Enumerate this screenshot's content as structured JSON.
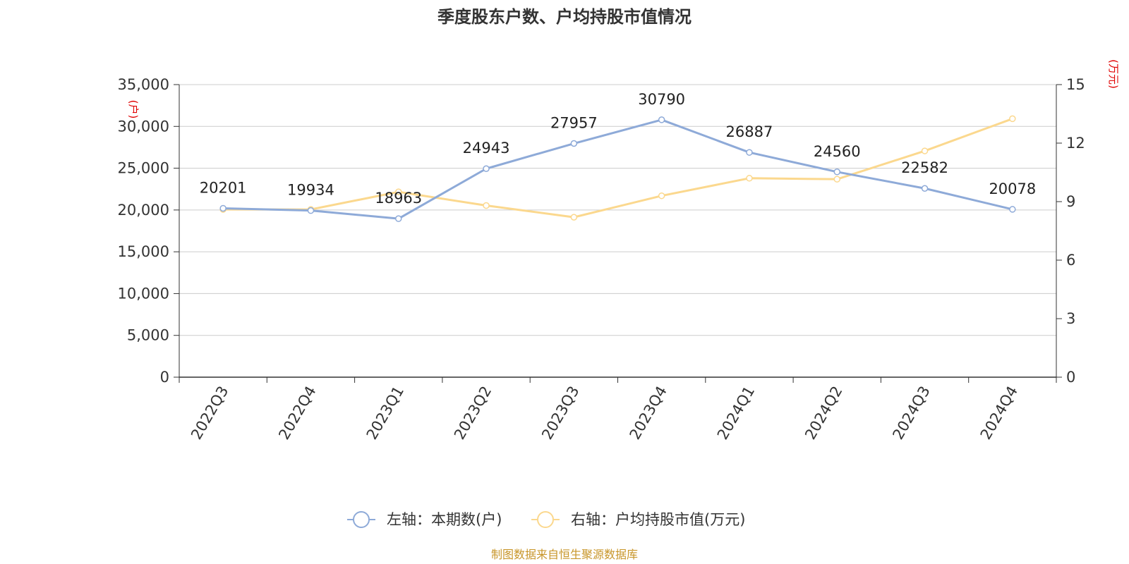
{
  "chart_data": {
    "type": "line",
    "title": "季度股东户数、户均持股市值情况",
    "categories": [
      "2022Q3",
      "2022Q4",
      "2023Q1",
      "2023Q2",
      "2023Q3",
      "2023Q4",
      "2024Q1",
      "2024Q2",
      "2024Q3",
      "2024Q4"
    ],
    "left_axis": {
      "unit": "(户)",
      "range": [
        0,
        35000
      ],
      "ticks": [
        0,
        5000,
        10000,
        15000,
        20000,
        25000,
        30000,
        35000
      ],
      "tick_labels": [
        "0",
        "5,000",
        "10,000",
        "15,000",
        "20,000",
        "25,000",
        "30,000",
        "35,000"
      ]
    },
    "right_axis": {
      "unit": "(万元)",
      "range": [
        0,
        15
      ],
      "ticks": [
        0,
        3,
        6,
        9,
        12,
        15
      ],
      "tick_labels": [
        "0",
        "3",
        "6",
        "9",
        "12",
        "15"
      ]
    },
    "series": [
      {
        "name": "左轴：本期数(户)",
        "axis": "left",
        "color": "#8eaad8",
        "values": [
          20201,
          19934,
          18963,
          24943,
          27957,
          30790,
          26887,
          24560,
          22582,
          20078
        ],
        "labels": [
          "20201",
          "19934",
          "18963",
          "24943",
          "27957",
          "30790",
          "26887",
          "24560",
          "22582",
          "20078"
        ]
      },
      {
        "name": "右轴：户均持股市值(万元)",
        "axis": "right",
        "color": "#fbd88e",
        "values": [
          8.6,
          8.6,
          9.5,
          8.8,
          8.2,
          9.3,
          10.2,
          10.15,
          11.6,
          13.25
        ]
      }
    ],
    "grid": true,
    "legend_position": "bottom-center"
  },
  "source": "制图数据来自恒生聚源数据库"
}
